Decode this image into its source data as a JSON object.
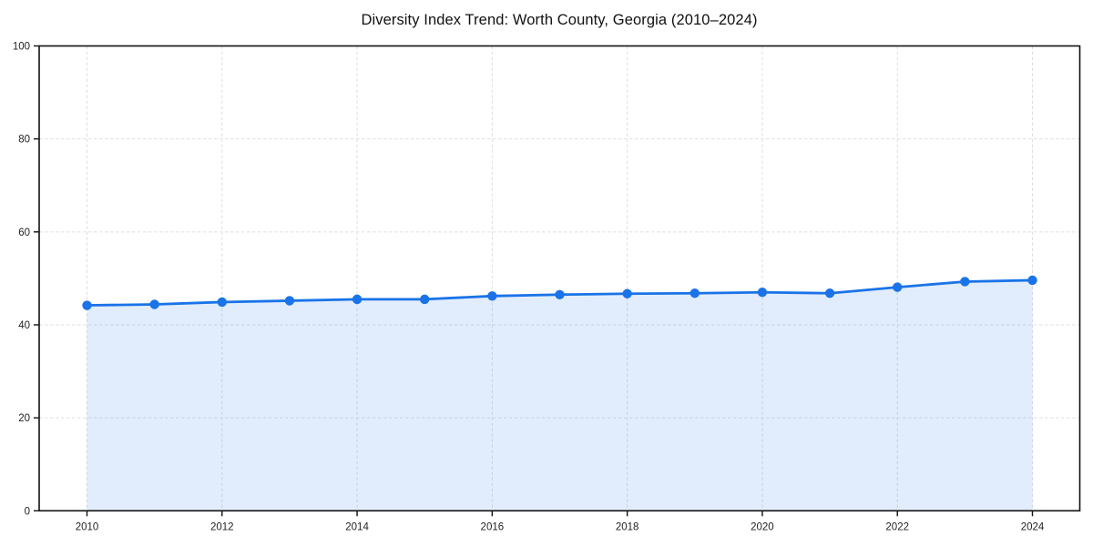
{
  "figure": {
    "background": "#ffffff"
  },
  "chart_data": {
    "type": "area",
    "title": "Diversity Index Trend: Worth County, Georgia (2010–2024)",
    "xlabel": "",
    "ylabel": "",
    "x": [
      2010,
      2011,
      2012,
      2013,
      2014,
      2015,
      2016,
      2017,
      2018,
      2019,
      2020,
      2021,
      2022,
      2023,
      2024
    ],
    "series": [
      {
        "name": "Diversity Index",
        "values": [
          44.2,
          44.4,
          44.9,
          45.2,
          45.5,
          45.5,
          46.2,
          46.5,
          46.7,
          46.8,
          47.0,
          46.8,
          48.1,
          49.3,
          49.6
        ]
      }
    ],
    "ylim": [
      0,
      100
    ],
    "y_ticks": [
      0,
      20,
      40,
      60,
      80,
      100
    ],
    "x_ticks": [
      2010,
      2012,
      2014,
      2016,
      2018,
      2020,
      2022,
      2024
    ],
    "grid": "dashed-both",
    "legend_position": "none",
    "marker": "circle",
    "colors": {
      "line": "#1a73e8",
      "fill": "rgba(26,115,232,0.13)",
      "grid": "#dfdfdf",
      "axis": "#111111",
      "tick_label": "#1f1f1f",
      "title": "#111111",
      "background": "#ffffff"
    }
  }
}
